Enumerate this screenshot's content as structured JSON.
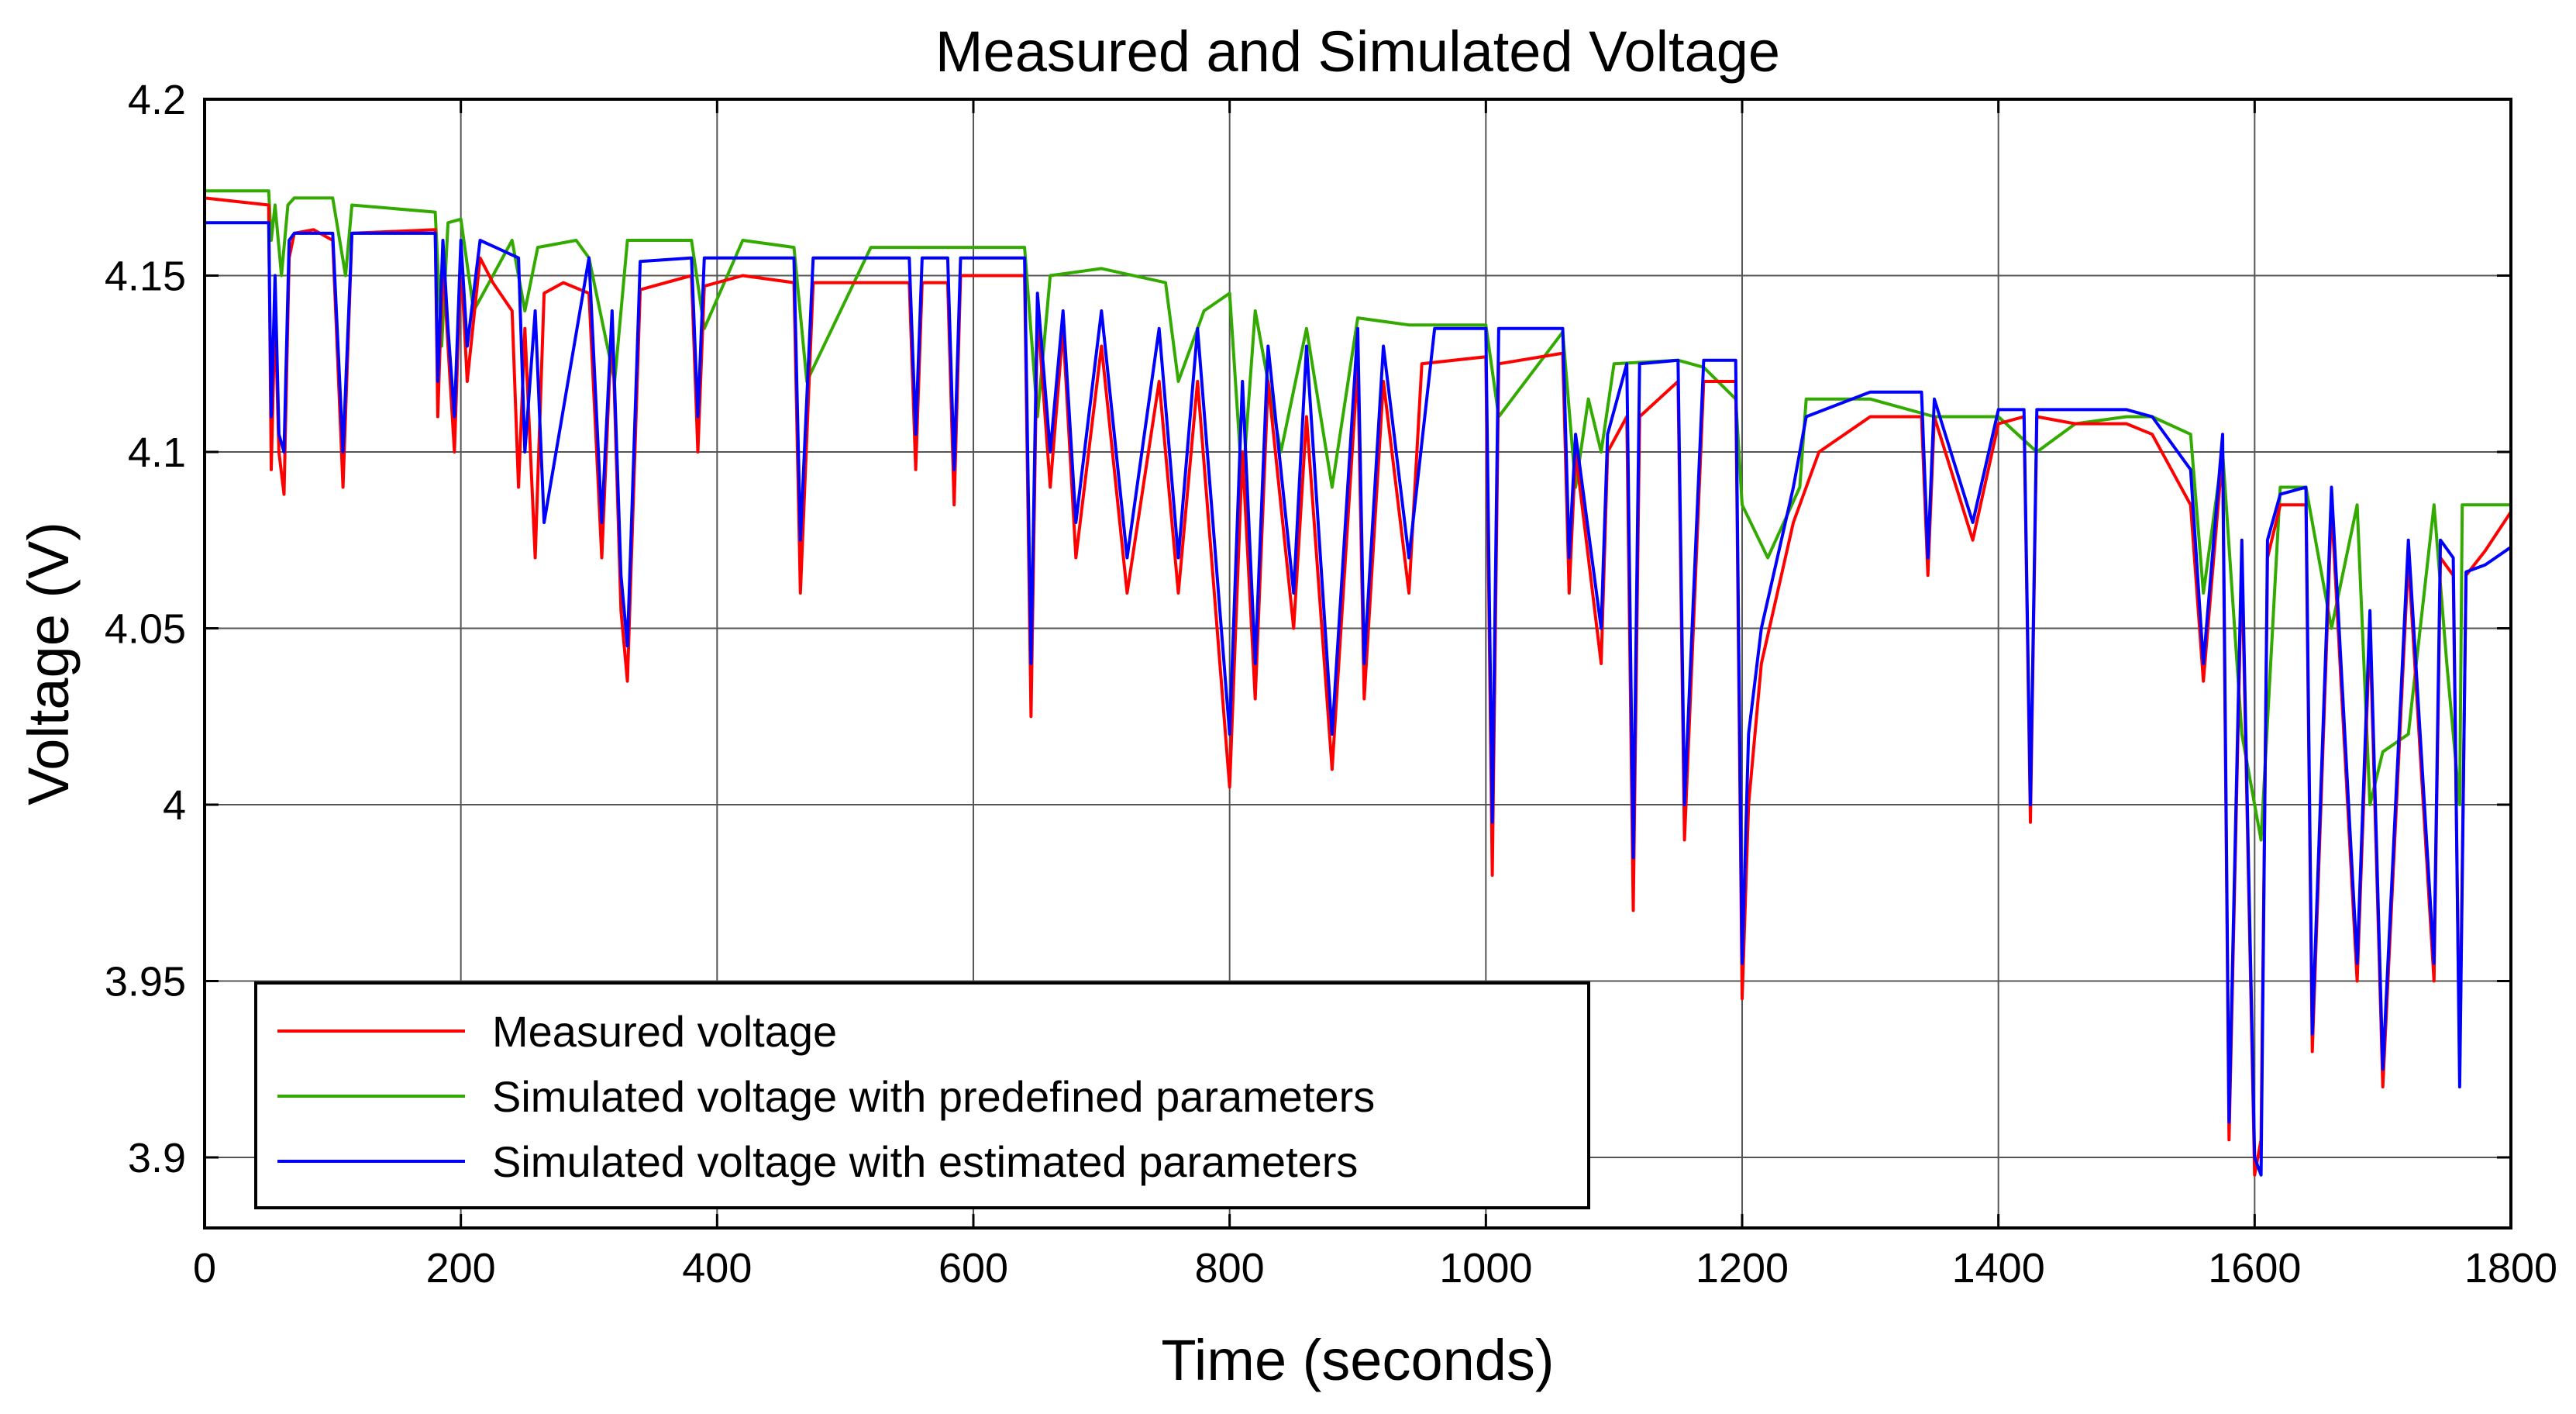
{
  "chart_data": {
    "type": "line",
    "title": "Measured and Simulated Voltage",
    "xlabel": "Time (seconds)",
    "ylabel": "Voltage (V)",
    "xlim": [
      0,
      1800
    ],
    "ylim": [
      3.88,
      4.2
    ],
    "xticks": [
      0,
      200,
      400,
      600,
      800,
      1000,
      1200,
      1400,
      1600,
      1800
    ],
    "xtick_labels": [
      "0",
      "200",
      "400",
      "600",
      "800",
      "1000",
      "1200",
      "1400",
      "1600",
      "1800"
    ],
    "yticks": [
      3.9,
      3.95,
      4.0,
      4.05,
      4.1,
      4.15,
      4.2
    ],
    "ytick_labels": [
      "3.9",
      "3.95",
      "4",
      "4.05",
      "4.1",
      "4.15",
      "4.2"
    ],
    "grid": true,
    "legend_position": "bottom-left",
    "series": [
      {
        "name": "Measured voltage",
        "color": "#ff0000",
        "x": [
          0,
          50,
          52,
          55,
          58,
          62,
          66,
          70,
          85,
          100,
          108,
          115,
          180,
          182,
          186,
          190,
          195,
          200,
          205,
          215,
          225,
          240,
          245,
          250,
          258,
          265,
          280,
          300,
          310,
          318,
          325,
          330,
          340,
          380,
          385,
          390,
          420,
          460,
          465,
          475,
          520,
          550,
          555,
          560,
          580,
          585,
          590,
          640,
          645,
          650,
          660,
          670,
          680,
          700,
          720,
          745,
          760,
          775,
          800,
          810,
          820,
          830,
          850,
          860,
          880,
          900,
          905,
          920,
          940,
          950,
          1000,
          1005,
          1010,
          1060,
          1065,
          1070,
          1090,
          1095,
          1110,
          1115,
          1120,
          1150,
          1155,
          1170,
          1195,
          1200,
          1205,
          1215,
          1240,
          1260,
          1300,
          1340,
          1345,
          1350,
          1380,
          1400,
          1420,
          1425,
          1430,
          1460,
          1500,
          1520,
          1550,
          1560,
          1575,
          1580,
          1590,
          1600,
          1605,
          1610,
          1620,
          1640,
          1645,
          1660,
          1680,
          1690,
          1700,
          1720,
          1740,
          1745,
          1755,
          1760,
          1765,
          1780,
          1800
        ],
        "y": [
          4.172,
          4.17,
          4.095,
          4.14,
          4.1,
          4.088,
          4.155,
          4.162,
          4.163,
          4.16,
          4.09,
          4.162,
          4.163,
          4.11,
          4.155,
          4.13,
          4.1,
          4.155,
          4.12,
          4.155,
          4.148,
          4.14,
          4.09,
          4.135,
          4.07,
          4.145,
          4.148,
          4.145,
          4.07,
          4.138,
          4.055,
          4.035,
          4.146,
          4.15,
          4.1,
          4.147,
          4.15,
          4.148,
          4.06,
          4.148,
          4.148,
          4.148,
          4.095,
          4.148,
          4.148,
          4.085,
          4.15,
          4.15,
          4.025,
          4.14,
          4.09,
          4.135,
          4.07,
          4.13,
          4.06,
          4.12,
          4.06,
          4.12,
          4.005,
          4.1,
          4.03,
          4.12,
          4.05,
          4.11,
          4.01,
          4.125,
          4.03,
          4.12,
          4.06,
          4.125,
          4.127,
          3.98,
          4.125,
          4.128,
          4.06,
          4.1,
          4.04,
          4.1,
          4.11,
          3.97,
          4.11,
          4.12,
          3.99,
          4.12,
          4.12,
          3.945,
          4.0,
          4.04,
          4.08,
          4.1,
          4.11,
          4.11,
          4.065,
          4.11,
          4.075,
          4.108,
          4.11,
          3.995,
          4.11,
          4.108,
          4.108,
          4.105,
          4.085,
          4.035,
          4.1,
          3.905,
          4.07,
          3.895,
          3.905,
          4.07,
          4.085,
          4.085,
          3.93,
          4.085,
          3.95,
          4.05,
          3.92,
          4.07,
          3.95,
          4.07,
          4.065,
          3.925,
          4.065,
          4.072,
          4.083
        ]
      },
      {
        "name": "Simulated voltage with predefined parameters",
        "color": "#33aa00",
        "x": [
          0,
          50,
          52,
          55,
          60,
          65,
          70,
          100,
          110,
          115,
          180,
          185,
          190,
          200,
          210,
          240,
          250,
          260,
          290,
          300,
          320,
          330,
          380,
          390,
          420,
          460,
          470,
          520,
          560,
          580,
          640,
          650,
          660,
          700,
          750,
          760,
          780,
          800,
          810,
          820,
          840,
          860,
          880,
          900,
          940,
          1000,
          1010,
          1060,
          1070,
          1080,
          1090,
          1100,
          1150,
          1170,
          1195,
          1200,
          1220,
          1245,
          1250,
          1300,
          1350,
          1400,
          1430,
          1460,
          1500,
          1520,
          1550,
          1560,
          1575,
          1590,
          1600,
          1605,
          1620,
          1640,
          1660,
          1680,
          1690,
          1700,
          1720,
          1740,
          1750,
          1760,
          1762,
          1800
        ],
        "y": [
          4.174,
          4.174,
          4.16,
          4.17,
          4.15,
          4.17,
          4.172,
          4.172,
          4.15,
          4.17,
          4.168,
          4.13,
          4.165,
          4.166,
          4.14,
          4.16,
          4.14,
          4.158,
          4.16,
          4.155,
          4.12,
          4.16,
          4.16,
          4.135,
          4.16,
          4.158,
          4.12,
          4.158,
          4.158,
          4.158,
          4.158,
          4.11,
          4.15,
          4.152,
          4.148,
          4.12,
          4.14,
          4.145,
          4.09,
          4.14,
          4.1,
          4.135,
          4.09,
          4.138,
          4.136,
          4.136,
          4.11,
          4.134,
          4.09,
          4.115,
          4.1,
          4.125,
          4.126,
          4.124,
          4.115,
          4.085,
          4.07,
          4.09,
          4.115,
          4.115,
          4.11,
          4.11,
          4.1,
          4.108,
          4.11,
          4.11,
          4.105,
          4.06,
          4.1,
          4.02,
          4.0,
          3.99,
          4.09,
          4.09,
          4.05,
          4.085,
          4.0,
          4.015,
          4.02,
          4.085,
          4.04,
          4.0,
          4.085,
          4.085
        ]
      },
      {
        "name": "Simulated voltage with estimated parameters",
        "color": "#0000ff",
        "x": [
          0,
          50,
          52,
          55,
          58,
          62,
          66,
          70,
          100,
          108,
          115,
          180,
          182,
          186,
          190,
          195,
          200,
          205,
          215,
          245,
          250,
          258,
          265,
          300,
          310,
          318,
          325,
          330,
          340,
          380,
          385,
          390,
          460,
          465,
          475,
          550,
          555,
          560,
          580,
          585,
          590,
          640,
          645,
          650,
          660,
          670,
          680,
          700,
          720,
          745,
          760,
          775,
          800,
          810,
          820,
          830,
          850,
          860,
          880,
          900,
          905,
          920,
          940,
          960,
          1000,
          1005,
          1010,
          1060,
          1065,
          1070,
          1090,
          1095,
          1110,
          1115,
          1120,
          1150,
          1155,
          1170,
          1195,
          1200,
          1205,
          1215,
          1240,
          1250,
          1300,
          1340,
          1345,
          1350,
          1380,
          1400,
          1420,
          1425,
          1430,
          1460,
          1500,
          1520,
          1550,
          1560,
          1575,
          1580,
          1590,
          1600,
          1605,
          1610,
          1620,
          1640,
          1645,
          1660,
          1680,
          1690,
          1700,
          1720,
          1740,
          1745,
          1755,
          1760,
          1765,
          1780,
          1800
        ],
        "y": [
          4.165,
          4.165,
          4.11,
          4.15,
          4.105,
          4.1,
          4.16,
          4.162,
          4.162,
          4.1,
          4.162,
          4.162,
          4.12,
          4.16,
          4.135,
          4.11,
          4.16,
          4.13,
          4.16,
          4.155,
          4.1,
          4.14,
          4.08,
          4.155,
          4.08,
          4.14,
          4.065,
          4.045,
          4.154,
          4.155,
          4.11,
          4.155,
          4.155,
          4.075,
          4.155,
          4.155,
          4.105,
          4.155,
          4.155,
          4.095,
          4.155,
          4.155,
          4.04,
          4.145,
          4.1,
          4.14,
          4.08,
          4.14,
          4.07,
          4.135,
          4.07,
          4.135,
          4.02,
          4.12,
          4.04,
          4.13,
          4.06,
          4.13,
          4.02,
          4.135,
          4.04,
          4.13,
          4.07,
          4.135,
          4.135,
          3.995,
          4.135,
          4.135,
          4.07,
          4.105,
          4.05,
          4.105,
          4.125,
          3.985,
          4.125,
          4.126,
          4.0,
          4.126,
          4.126,
          3.955,
          4.02,
          4.05,
          4.09,
          4.11,
          4.117,
          4.117,
          4.07,
          4.115,
          4.08,
          4.112,
          4.112,
          4.0,
          4.112,
          4.112,
          4.112,
          4.11,
          4.095,
          4.04,
          4.105,
          3.91,
          4.075,
          3.9,
          3.895,
          4.075,
          4.088,
          4.09,
          3.935,
          4.09,
          3.955,
          4.055,
          3.925,
          4.075,
          3.955,
          4.075,
          4.07,
          3.92,
          4.066,
          4.068,
          4.073
        ]
      }
    ]
  }
}
